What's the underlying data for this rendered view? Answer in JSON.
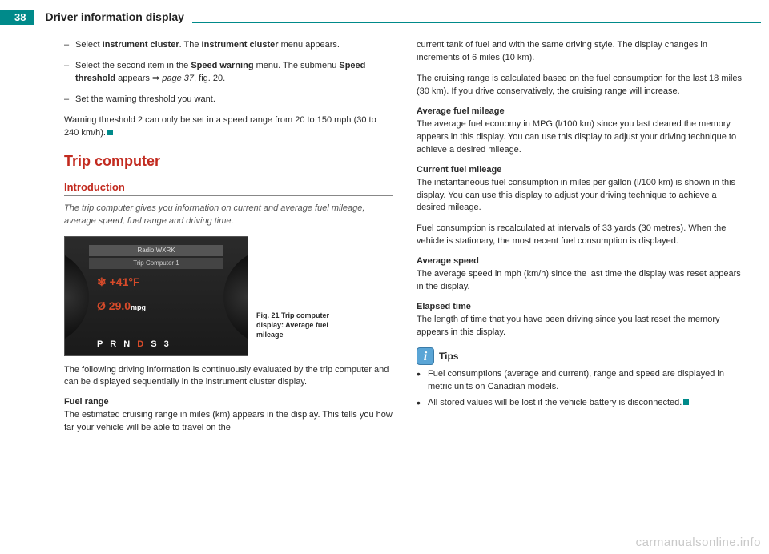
{
  "page_number": "38",
  "header_title": "Driver information display",
  "left": {
    "steps": [
      "Select <b>Instrument cluster</b>. The <b>Instrument cluster</b> menu appears.",
      "Select the second item in the <b>Speed warning</b> menu. The submenu <b>Speed threshold</b> appears ⇒ <i>page 37</i>, fig. 20.",
      "Set the warning threshold you want."
    ],
    "note": "Warning threshold 2 can only be set in a speed range from 20 to 150 mph (30 to 240 km/h).",
    "h2": "Trip computer",
    "h3": "Introduction",
    "intro": "The trip computer gives you information on current and average fuel mileage, average speed, fuel range and driving time.",
    "dash": {
      "top": "Radio WXRK",
      "sub": "Trip Computer 1",
      "temp": "❄ +41°F",
      "mpg_val": "Ø  29.0",
      "mpg_unit": "mpg",
      "gear_pre": "P R N ",
      "gear_d": "D",
      "gear_post": " S  3"
    },
    "fig_caption": "Fig. 21  Trip computer display: Average fuel mileage",
    "p_after_fig": "The following driving information is continuously evaluated by the trip computer and can be displayed sequentially in the instrument cluster display.",
    "fuel_range_h": "Fuel range",
    "fuel_range_p": "The estimated cruising range in miles (km) appears in the display. This tells you how far your vehicle will be able to travel on the"
  },
  "right": {
    "p1": "current tank of fuel and with the same driving style. The display changes in increments of 6 miles (10 km).",
    "p2": "The cruising range is calculated based on the fuel consumption for the last 18 miles (30 km). If you drive conservatively, the cruising range will increase.",
    "avg_fuel_h": "Average fuel mileage",
    "avg_fuel_p": "The average fuel economy in MPG (l/100 km) since you last cleared the memory appears in this display. You can use this display to adjust your driving technique to achieve a desired mileage.",
    "cur_fuel_h": "Current fuel mileage",
    "cur_fuel_p1": "The instantaneous fuel consumption in miles per gallon (l/100 km) is shown in this display. You can use this display to adjust your driving technique to achieve a desired mileage.",
    "cur_fuel_p2": "Fuel consumption is recalculated at intervals of 33 yards (30 metres). When the vehicle is stationary, the most recent fuel consumption is displayed.",
    "avg_speed_h": "Average speed",
    "avg_speed_p": "The average speed in mph (km/h) since the last time the display was reset appears in the display.",
    "elapsed_h": "Elapsed time",
    "elapsed_p": "The length of time that you have been driving since you last reset the memory appears in this display.",
    "tips_label": "Tips",
    "tips": [
      "Fuel consumptions (average and current), range and speed are displayed in metric units on Canadian models.",
      "All stored values will be lost if the vehicle battery is disconnected."
    ]
  },
  "watermark": "carmanualsonline.info"
}
